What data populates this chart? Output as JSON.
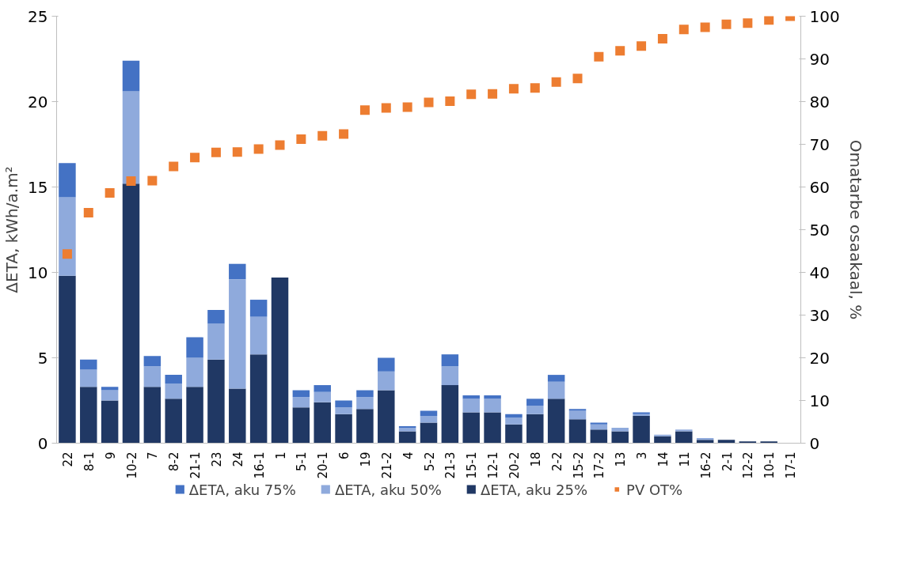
{
  "chart_data": {
    "type": "bar",
    "stacked": true,
    "ylabel": "ΔETA, kWh/a.m²",
    "y2label": "Omatarbe osaakaal, %",
    "categories": [
      "22",
      "8-1",
      "9",
      "10-2",
      "7",
      "8-2",
      "21-1",
      "23",
      "24",
      "16-1",
      "1",
      "5-1",
      "20-1",
      "6",
      "19",
      "21-2",
      "4",
      "5-2",
      "21-3",
      "15-1",
      "12-1",
      "20-2",
      "18",
      "2-2",
      "15-2",
      "17-2",
      "13",
      "3",
      "14",
      "11",
      "16-2",
      "2-1",
      "12-2",
      "10-1",
      "17-1"
    ],
    "ylim": [
      0,
      25
    ],
    "yticks": [
      0,
      5,
      10,
      15,
      20,
      25
    ],
    "y2lim": [
      0,
      100
    ],
    "y2ticks": [
      0,
      10,
      20,
      30,
      40,
      50,
      60,
      70,
      80,
      90,
      100
    ],
    "grid": false,
    "legend": "bottom",
    "marker": "square",
    "series": [
      {
        "name": "ΔETA, aku 25%",
        "color": "#203864",
        "values": [
          9.8,
          3.3,
          2.5,
          15.2,
          3.3,
          2.6,
          3.3,
          4.9,
          3.2,
          5.2,
          9.7,
          2.1,
          2.4,
          1.7,
          2.0,
          3.1,
          0.7,
          1.2,
          3.4,
          1.8,
          1.8,
          1.1,
          1.7,
          2.6,
          1.4,
          0.8,
          0.7,
          1.6,
          0.4,
          0.7,
          0.2,
          0.2,
          0.1,
          0.1,
          0
        ]
      },
      {
        "name": "ΔETA, aku 50%",
        "color": "#8faadc",
        "values": [
          4.6,
          1.0,
          0.6,
          5.4,
          1.2,
          0.9,
          1.7,
          2.1,
          6.4,
          2.2,
          0,
          0.6,
          0.6,
          0.4,
          0.7,
          1.1,
          0.2,
          0.4,
          1.1,
          0.8,
          0.8,
          0.4,
          0.5,
          1.0,
          0.5,
          0.3,
          0.2,
          0.1,
          0.1,
          0.1,
          0.1,
          0,
          0,
          0,
          0
        ]
      },
      {
        "name": "ΔETA, aku 75%",
        "color": "#4472c4",
        "values": [
          2.0,
          0.6,
          0.2,
          1.8,
          0.6,
          0.5,
          1.2,
          0.8,
          0.9,
          1.0,
          0,
          0.4,
          0.4,
          0.4,
          0.4,
          0.8,
          0.1,
          0.3,
          0.7,
          0.2,
          0.2,
          0.2,
          0.4,
          0.4,
          0.1,
          0.1,
          0,
          0.1,
          0,
          0,
          0,
          0,
          0,
          0,
          0
        ]
      },
      {
        "name": "PV OT%",
        "type": "scatter",
        "axis": "y2",
        "color": "#ed7d31",
        "values": [
          44.3,
          54.0,
          58.6,
          61.4,
          61.5,
          64.8,
          66.9,
          68.1,
          68.2,
          68.9,
          69.8,
          71.2,
          72.0,
          72.4,
          78.0,
          78.5,
          78.7,
          79.8,
          80.1,
          81.7,
          81.8,
          83.0,
          83.2,
          84.6,
          85.4,
          90.5,
          91.9,
          93.0,
          94.7,
          96.9,
          97.4,
          98.1,
          98.4,
          99.1,
          100
        ]
      }
    ]
  }
}
